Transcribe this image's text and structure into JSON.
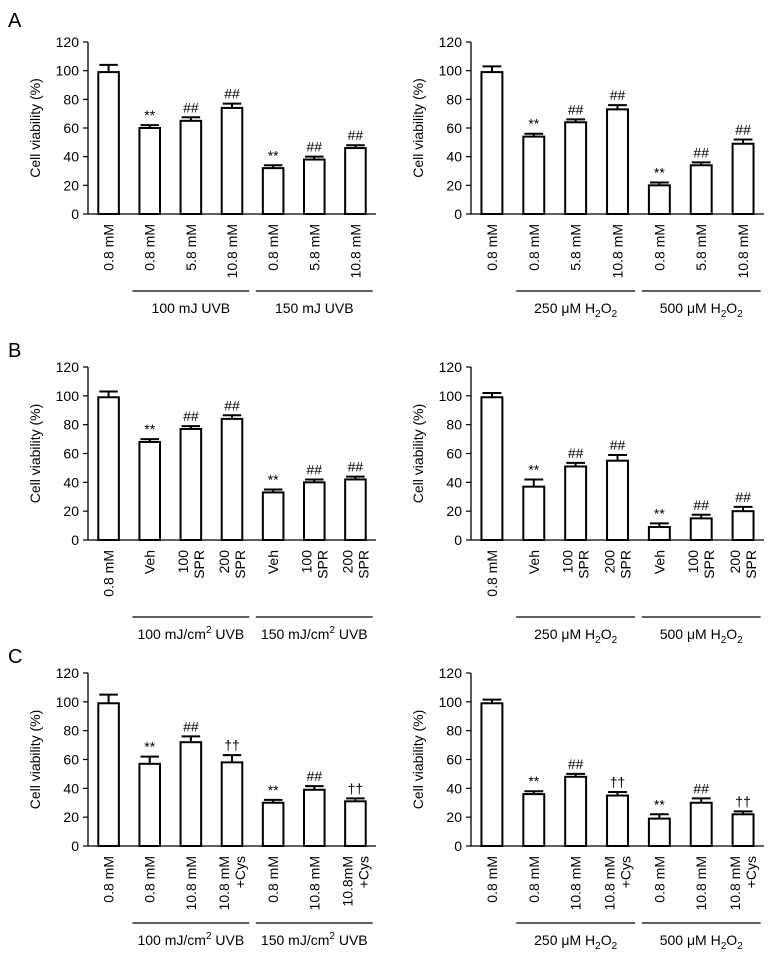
{
  "figure": {
    "panel_letters": [
      "A",
      "B",
      "C"
    ]
  },
  "chart_data": [
    {
      "type": "bar",
      "panel": "A",
      "ylabel": "Cell viability  (%)",
      "ylim": [
        0,
        120
      ],
      "yticks": [
        0,
        20,
        40,
        60,
        80,
        100,
        120
      ],
      "categories": [
        [
          "0.8 mM"
        ],
        [
          "0.8 mM"
        ],
        [
          "5.8 mM"
        ],
        [
          "10.8 mM"
        ],
        [
          "0.8 mM"
        ],
        [
          "5.8 mM"
        ],
        [
          "10.8 mM"
        ]
      ],
      "values": [
        99,
        60,
        65,
        74,
        32,
        38,
        46
      ],
      "errors": [
        5,
        2,
        2.5,
        3,
        2,
        2,
        2
      ],
      "annotations": [
        "",
        "**",
        "##",
        "##",
        "**",
        "##",
        "##"
      ],
      "groups": [
        {
          "label": "100 mJ UVB",
          "sub": "",
          "start": 1,
          "end": 3
        },
        {
          "label": "150 mJ UVB",
          "sub": "",
          "start": 4,
          "end": 6
        }
      ]
    },
    {
      "type": "bar",
      "panel": "",
      "ylabel": "Cell viability  (%)",
      "ylim": [
        0,
        120
      ],
      "yticks": [
        0,
        20,
        40,
        60,
        80,
        100,
        120
      ],
      "categories": [
        [
          "0.8 mM"
        ],
        [
          "0.8 mM"
        ],
        [
          "5.8 mM"
        ],
        [
          "10.8 mM"
        ],
        [
          "0.8 mM"
        ],
        [
          "5.8 mM"
        ],
        [
          "10.8 mM"
        ]
      ],
      "values": [
        99,
        54,
        64,
        73,
        20,
        34,
        49
      ],
      "errors": [
        4,
        2,
        2,
        3,
        2,
        2,
        3
      ],
      "annotations": [
        "",
        "**",
        "##",
        "##",
        "**",
        "##",
        "##"
      ],
      "groups": [
        {
          "label": "250 μM H",
          "sub": "2",
          "label_end": "O",
          "sub_end": "2",
          "start": 1,
          "end": 3
        },
        {
          "label": "500 μM H",
          "sub": "2",
          "label_end": "O",
          "sub_end": "2",
          "start": 4,
          "end": 6
        }
      ]
    },
    {
      "type": "bar",
      "panel": "B",
      "ylabel": "Cell viability  (%)",
      "ylim": [
        0,
        120
      ],
      "yticks": [
        0,
        20,
        40,
        60,
        80,
        100,
        120
      ],
      "categories": [
        [
          "0.8 mM"
        ],
        [
          "Veh"
        ],
        [
          "100",
          "SPR"
        ],
        [
          "200",
          "SPR"
        ],
        [
          "Veh"
        ],
        [
          "100",
          "SPR"
        ],
        [
          "200",
          "SPR"
        ]
      ],
      "values": [
        99,
        68,
        77,
        84,
        33,
        40,
        42
      ],
      "errors": [
        4,
        2,
        2,
        2.5,
        2,
        2,
        2
      ],
      "annotations": [
        "",
        "**",
        "##",
        "##",
        "**",
        "##",
        "##"
      ],
      "groups": [
        {
          "label": "100 mJ/cm",
          "sup": "2",
          "label_end": " UVB",
          "start": 1,
          "end": 3
        },
        {
          "label": "150 mJ/cm",
          "sup": "2",
          "label_end": " UVB",
          "start": 4,
          "end": 6
        }
      ]
    },
    {
      "type": "bar",
      "panel": "",
      "ylabel": "Cell viability  (%)",
      "ylim": [
        0,
        120
      ],
      "yticks": [
        0,
        20,
        40,
        60,
        80,
        100,
        120
      ],
      "categories": [
        [
          "0.8 mM"
        ],
        [
          "Veh"
        ],
        [
          "100",
          "SPR"
        ],
        [
          "200",
          "SPR"
        ],
        [
          "Veh"
        ],
        [
          "100",
          "SPR"
        ],
        [
          "200",
          "SPR"
        ]
      ],
      "values": [
        99,
        37,
        51,
        55,
        9,
        15,
        20
      ],
      "errors": [
        3,
        5,
        2.5,
        4,
        2.5,
        2.5,
        3
      ],
      "annotations": [
        "",
        "**",
        "##",
        "##",
        "**",
        "##",
        "##"
      ],
      "groups": [
        {
          "label": "250 μM H",
          "sub": "2",
          "label_end": "O",
          "sub_end": "2",
          "start": 1,
          "end": 3
        },
        {
          "label": "500 μM H",
          "sub": "2",
          "label_end": "O",
          "sub_end": "2",
          "start": 4,
          "end": 6
        }
      ]
    },
    {
      "type": "bar",
      "panel": "C",
      "ylabel": "Cell viability  (%)",
      "ylim": [
        0,
        120
      ],
      "yticks": [
        0,
        20,
        40,
        60,
        80,
        100,
        120
      ],
      "categories": [
        [
          "0.8 mM"
        ],
        [
          "0.8 mM"
        ],
        [
          "10.8 mM"
        ],
        [
          "10.8 mM",
          "+Cys"
        ],
        [
          "0.8 mM"
        ],
        [
          "10.8 mM"
        ],
        [
          "10.8mM",
          "+Cys"
        ]
      ],
      "values": [
        99,
        57,
        72,
        58,
        30,
        39,
        31
      ],
      "errors": [
        6,
        5,
        4,
        5,
        2,
        2.5,
        2
      ],
      "annotations": [
        "",
        "**",
        "##",
        "††",
        "**",
        "##",
        "††"
      ],
      "groups": [
        {
          "label": "100 mJ/cm",
          "sup": "2",
          "label_end": " UVB",
          "start": 1,
          "end": 3
        },
        {
          "label": "150 mJ/cm",
          "sup": "2",
          "label_end": " UVB",
          "start": 4,
          "end": 6
        }
      ]
    },
    {
      "type": "bar",
      "panel": "",
      "ylabel": "Cell viability  (%)",
      "ylim": [
        0,
        120
      ],
      "yticks": [
        0,
        20,
        40,
        60,
        80,
        100,
        120
      ],
      "categories": [
        [
          "0.8 mM"
        ],
        [
          "0.8 mM"
        ],
        [
          "10.8 mM"
        ],
        [
          "10.8 mM",
          "+Cys"
        ],
        [
          "0.8 mM"
        ],
        [
          "10.8 mM"
        ],
        [
          "10.8 mM",
          "+Cys"
        ]
      ],
      "values": [
        99,
        36,
        48,
        35,
        19,
        30,
        22
      ],
      "errors": [
        2.5,
        2,
        2,
        2.5,
        3,
        3,
        2
      ],
      "annotations": [
        "",
        "**",
        "##",
        "††",
        "**",
        "##",
        "††"
      ],
      "groups": [
        {
          "label": "250 μM H",
          "sub": "2",
          "label_end": "O",
          "sub_end": "2",
          "start": 1,
          "end": 3
        },
        {
          "label": "500 μM H",
          "sub": "2",
          "label_end": "O",
          "sub_end": "2",
          "start": 4,
          "end": 6
        }
      ]
    }
  ]
}
